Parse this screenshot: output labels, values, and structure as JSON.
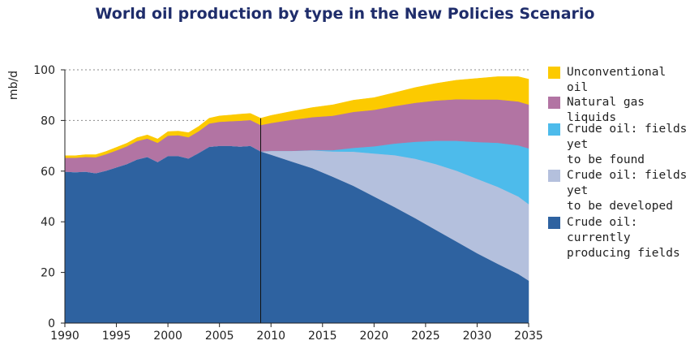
{
  "chart_data": {
    "type": "area",
    "stacked": true,
    "title": "World oil production by type in the New Policies Scenario",
    "ylabel": "mb/d",
    "xlabel": "",
    "xlim": [
      1990,
      2035
    ],
    "ylim": [
      0,
      100
    ],
    "xticks": [
      1990,
      1995,
      2000,
      2005,
      2010,
      2015,
      2020,
      2025,
      2030,
      2035
    ],
    "yticks": [
      0,
      20,
      40,
      60,
      80,
      100
    ],
    "gridlines": [
      80,
      100
    ],
    "divider_year": 2009,
    "x": [
      1990,
      1991,
      1992,
      1993,
      1994,
      1995,
      1996,
      1997,
      1998,
      1999,
      2000,
      2001,
      2002,
      2003,
      2004,
      2005,
      2006,
      2007,
      2008,
      2009,
      2010,
      2012,
      2014,
      2016,
      2018,
      2020,
      2022,
      2024,
      2026,
      2028,
      2030,
      2032,
      2034,
      2035
    ],
    "series": [
      {
        "name": "Crude oil: currently producing fields",
        "color": "#2e62a0",
        "values": [
          59.8,
          59.6,
          59.8,
          59.2,
          60.2,
          61.5,
          62.8,
          64.6,
          65.6,
          63.6,
          66.0,
          66.0,
          65.0,
          67.2,
          69.6,
          70.0,
          70.0,
          69.7,
          70.0,
          67.8,
          66.5,
          63.8,
          61.2,
          57.8,
          54.2,
          50.0,
          45.8,
          41.4,
          36.8,
          32.2,
          27.6,
          23.4,
          19.4,
          16.8
        ]
      },
      {
        "name": "Crude oil: fields yet to be developed",
        "color": "#b4c0dd",
        "values": [
          0,
          0,
          0,
          0,
          0,
          0,
          0,
          0,
          0,
          0,
          0,
          0,
          0,
          0,
          0,
          0,
          0,
          0,
          0,
          0,
          1.5,
          4.2,
          7.0,
          10.0,
          13.5,
          17.0,
          20.5,
          23.5,
          26.0,
          28.0,
          29.4,
          30.4,
          30.6,
          30.2
        ]
      },
      {
        "name": "Crude oil: fields yet to be found",
        "color": "#4dbbeb",
        "values": [
          0,
          0,
          0,
          0,
          0,
          0,
          0,
          0,
          0,
          0,
          0,
          0,
          0,
          0,
          0,
          0,
          0,
          0,
          0,
          0,
          0,
          0,
          0.1,
          0.5,
          1.5,
          2.8,
          4.6,
          6.7,
          9.2,
          11.8,
          14.5,
          17.4,
          20.2,
          22.0
        ]
      },
      {
        "name": "Natural gas liquids",
        "color": "#b274a3",
        "values": [
          5.5,
          5.7,
          5.8,
          6.3,
          6.5,
          6.7,
          7.0,
          7.3,
          7.3,
          7.6,
          8.0,
          8.2,
          8.4,
          8.6,
          9.2,
          9.5,
          9.7,
          10.2,
          10.2,
          10.4,
          11.0,
          12.3,
          13.0,
          13.6,
          14.2,
          14.4,
          14.8,
          15.4,
          15.9,
          16.4,
          16.8,
          17.1,
          17.3,
          17.3
        ]
      },
      {
        "name": "Unconventional oil",
        "color": "#fcca00",
        "values": [
          0.8,
          0.8,
          0.9,
          1.0,
          1.1,
          1.2,
          1.2,
          1.3,
          1.4,
          1.5,
          1.6,
          1.6,
          1.8,
          1.9,
          2.1,
          2.3,
          2.4,
          2.6,
          2.6,
          2.7,
          3.0,
          3.3,
          3.8,
          4.3,
          4.6,
          4.8,
          5.3,
          6.0,
          6.7,
          7.5,
          8.3,
          9.0,
          9.8,
          10.0
        ]
      }
    ],
    "legend": [
      {
        "label": "Unconventional oil",
        "color": "#fcca00"
      },
      {
        "label": "Natural gas liquids",
        "color": "#b274a3"
      },
      {
        "label": "Crude oil: fields yet\nto be found",
        "color": "#4dbbeb"
      },
      {
        "label": "Crude oil: fields yet\nto be developed",
        "color": "#b4c0dd"
      },
      {
        "label": "Crude oil: currently\nproducing fields",
        "color": "#2e62a0"
      }
    ]
  }
}
